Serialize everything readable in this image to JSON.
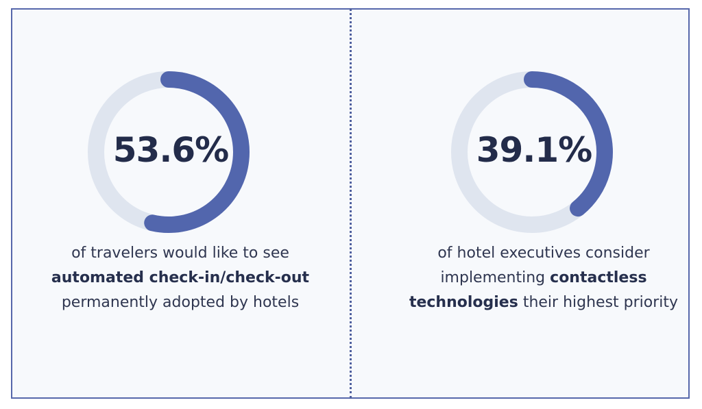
{
  "colors": {
    "track": "#dfe5ef",
    "fill": "#5266ad",
    "text": "#232c4a",
    "border": "#5667ab"
  },
  "chart_data": [
    {
      "type": "donut",
      "value": 53.6,
      "max": 100,
      "label": "53.6%",
      "caption_pre": "of travelers would like to see",
      "caption_bold": "automated check-in/check-out",
      "caption_post": "permanently adopted by hotels"
    },
    {
      "type": "donut",
      "value": 39.1,
      "max": 100,
      "label": "39.1%",
      "caption_pre": "of hotel executives consider implementing",
      "caption_bold": "contactless technologies",
      "caption_post": "their highest priority"
    }
  ]
}
